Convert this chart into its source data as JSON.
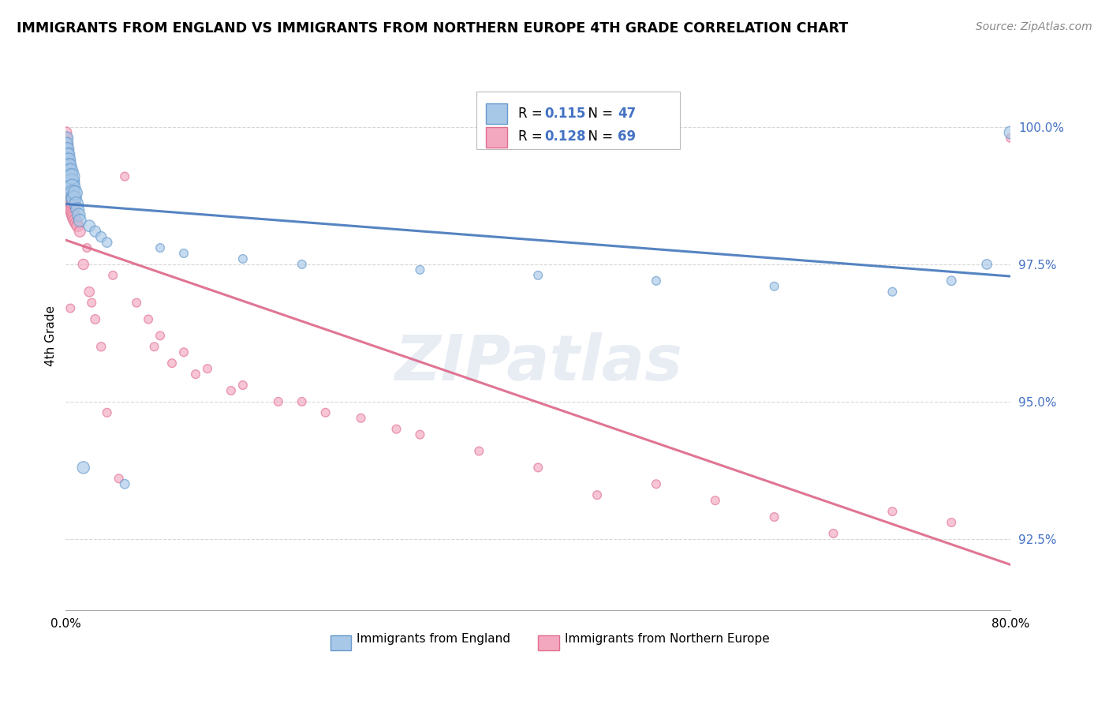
{
  "title": "IMMIGRANTS FROM ENGLAND VS IMMIGRANTS FROM NORTHERN EUROPE 4TH GRADE CORRELATION CHART",
  "source": "Source: ZipAtlas.com",
  "ylabel": "4th Grade",
  "ytick_values": [
    92.5,
    95.0,
    97.5,
    100.0
  ],
  "R_england": 0.115,
  "N_england": 47,
  "R_northern": 0.128,
  "N_northern": 69,
  "color_england": "#a8c8e8",
  "color_northern": "#f4a8c0",
  "color_england_edge": "#6699cc",
  "color_northern_edge": "#e07090",
  "color_trend_england": "#4477bb",
  "color_trend_northern": "#dd6688",
  "xlim": [
    0.0,
    80.0
  ],
  "ylim": [
    91.2,
    101.2
  ],
  "england_x": [
    0.05,
    0.08,
    0.1,
    0.12,
    0.15,
    0.18,
    0.2,
    0.22,
    0.25,
    0.28,
    0.3,
    0.32,
    0.35,
    0.38,
    0.4,
    0.42,
    0.45,
    0.48,
    0.5,
    0.52,
    0.55,
    0.6,
    0.65,
    0.7,
    0.8,
    0.9,
    1.0,
    1.1,
    1.2,
    1.5,
    2.0,
    2.5,
    3.0,
    3.5,
    5.0,
    8.0,
    10.0,
    15.0,
    20.0,
    30.0,
    40.0,
    50.0,
    60.0,
    70.0,
    75.0,
    78.0,
    80.0
  ],
  "england_y": [
    99.6,
    99.7,
    99.8,
    99.7,
    99.6,
    99.5,
    99.4,
    99.5,
    99.4,
    99.3,
    99.2,
    99.3,
    99.1,
    99.0,
    99.1,
    99.2,
    99.0,
    98.9,
    99.0,
    99.1,
    98.9,
    98.8,
    98.7,
    98.7,
    98.8,
    98.6,
    98.5,
    98.4,
    98.3,
    93.8,
    98.2,
    98.1,
    98.0,
    97.9,
    93.5,
    97.8,
    97.7,
    97.6,
    97.5,
    97.4,
    97.3,
    97.2,
    97.1,
    97.0,
    97.2,
    97.5,
    99.9
  ],
  "england_sizes": [
    120,
    110,
    130,
    120,
    140,
    130,
    150,
    140,
    160,
    150,
    170,
    160,
    180,
    170,
    190,
    180,
    200,
    190,
    210,
    200,
    220,
    200,
    190,
    180,
    170,
    160,
    150,
    140,
    130,
    120,
    110,
    100,
    90,
    80,
    70,
    60,
    60,
    60,
    60,
    60,
    60,
    60,
    60,
    60,
    70,
    80,
    130
  ],
  "northern_x": [
    0.04,
    0.06,
    0.08,
    0.1,
    0.12,
    0.14,
    0.15,
    0.16,
    0.18,
    0.2,
    0.22,
    0.25,
    0.28,
    0.3,
    0.32,
    0.35,
    0.38,
    0.4,
    0.42,
    0.45,
    0.48,
    0.5,
    0.52,
    0.55,
    0.6,
    0.65,
    0.7,
    0.8,
    0.9,
    1.0,
    1.2,
    1.5,
    2.0,
    2.5,
    3.0,
    4.0,
    5.0,
    6.0,
    7.0,
    8.0,
    10.0,
    12.0,
    15.0,
    20.0,
    25.0,
    30.0,
    35.0,
    40.0,
    50.0,
    55.0,
    60.0,
    65.0,
    70.0,
    75.0,
    80.0,
    1.8,
    0.35,
    0.4,
    2.2,
    3.5,
    4.5,
    7.5,
    9.0,
    11.0,
    14.0,
    18.0,
    22.0,
    28.0,
    45.0
  ],
  "northern_y": [
    99.9,
    99.8,
    99.7,
    99.6,
    99.5,
    99.4,
    99.35,
    99.3,
    99.25,
    99.2,
    99.15,
    99.1,
    99.05,
    99.0,
    98.95,
    98.9,
    98.85,
    98.8,
    98.75,
    98.7,
    98.65,
    98.6,
    98.55,
    98.5,
    98.45,
    98.4,
    98.35,
    98.3,
    98.25,
    98.2,
    98.1,
    97.5,
    97.0,
    96.5,
    96.0,
    97.3,
    99.1,
    96.8,
    96.5,
    96.2,
    95.9,
    95.6,
    95.3,
    95.0,
    94.7,
    94.4,
    94.1,
    93.8,
    93.5,
    93.2,
    92.9,
    92.6,
    93.0,
    92.8,
    99.8,
    97.8,
    98.6,
    96.7,
    96.8,
    94.8,
    93.6,
    96.0,
    95.7,
    95.5,
    95.2,
    95.0,
    94.8,
    94.5,
    93.3
  ],
  "northern_sizes": [
    100,
    110,
    120,
    130,
    140,
    150,
    160,
    170,
    180,
    190,
    200,
    210,
    220,
    230,
    240,
    250,
    240,
    230,
    220,
    210,
    200,
    190,
    180,
    170,
    160,
    150,
    140,
    130,
    120,
    110,
    100,
    90,
    80,
    70,
    65,
    60,
    60,
    60,
    60,
    60,
    60,
    60,
    60,
    60,
    60,
    60,
    60,
    60,
    60,
    60,
    60,
    60,
    60,
    60,
    60,
    60,
    60,
    60,
    60,
    60,
    60,
    60,
    60,
    60,
    60,
    60,
    60,
    60,
    60
  ]
}
